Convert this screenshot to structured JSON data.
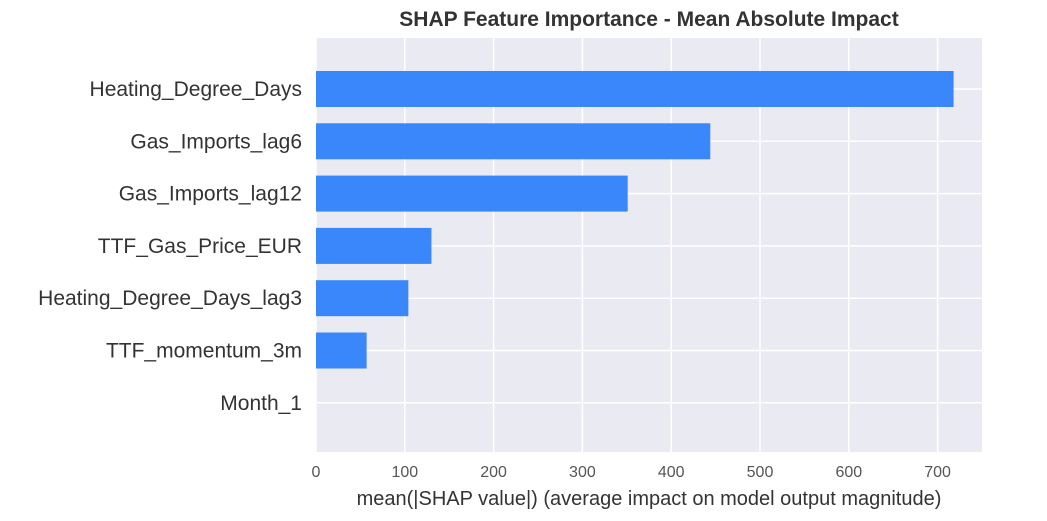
{
  "chart_data": {
    "type": "bar",
    "orientation": "horizontal",
    "title": "SHAP Feature Importance - Mean Absolute Impact",
    "xlabel": "mean(|SHAP value|) (average impact on model output magnitude)",
    "ylabel": "",
    "categories": [
      "Heating_Degree_Days",
      "Gas_Imports_lag6",
      "Gas_Imports_lag12",
      "TTF_Gas_Price_EUR",
      "Heating_Degree_Days_lag3",
      "TTF_momentum_3m",
      "Month_1"
    ],
    "values": [
      718,
      444,
      351,
      130,
      104,
      57,
      0
    ],
    "xlim": [
      0,
      750
    ],
    "xticks": [
      0,
      100,
      200,
      300,
      400,
      500,
      600,
      700
    ],
    "grid": true,
    "bar_color": "#3a87fb",
    "background_color": "#eaeaf2",
    "legend": "none"
  }
}
